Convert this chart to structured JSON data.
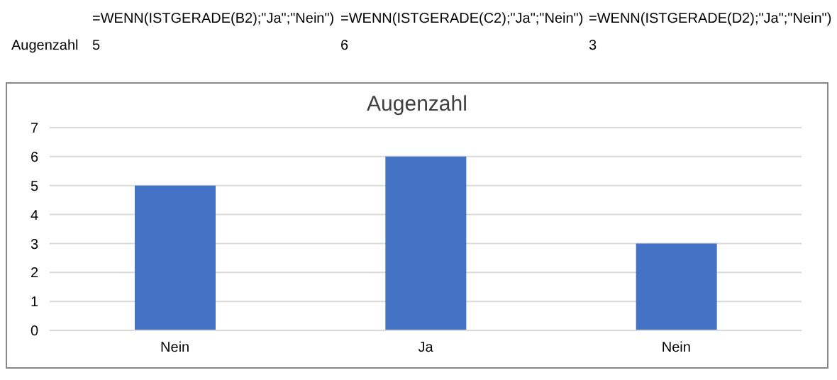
{
  "chart_data": {
    "type": "bar",
    "title": "Augenzahl",
    "categories": [
      "Nein",
      "Ja",
      "Nein"
    ],
    "values": [
      5,
      6,
      3
    ],
    "color": "#4472c4",
    "ylim": [
      0,
      7
    ],
    "yticks": [
      0,
      1,
      2,
      3,
      4,
      5,
      6,
      7
    ],
    "grid": "y",
    "annotations": [
      "=WENN(ISTGERADE(B2);\"Ja\";\"Nein\")",
      "=WENN(ISTGERADE(C2);\"Ja\";\"Nein\")",
      "=WENN(ISTGERADE(D2);\"Ja\";\"Nein\")",
      "Augenzahl",
      "5",
      "6",
      "3"
    ]
  }
}
